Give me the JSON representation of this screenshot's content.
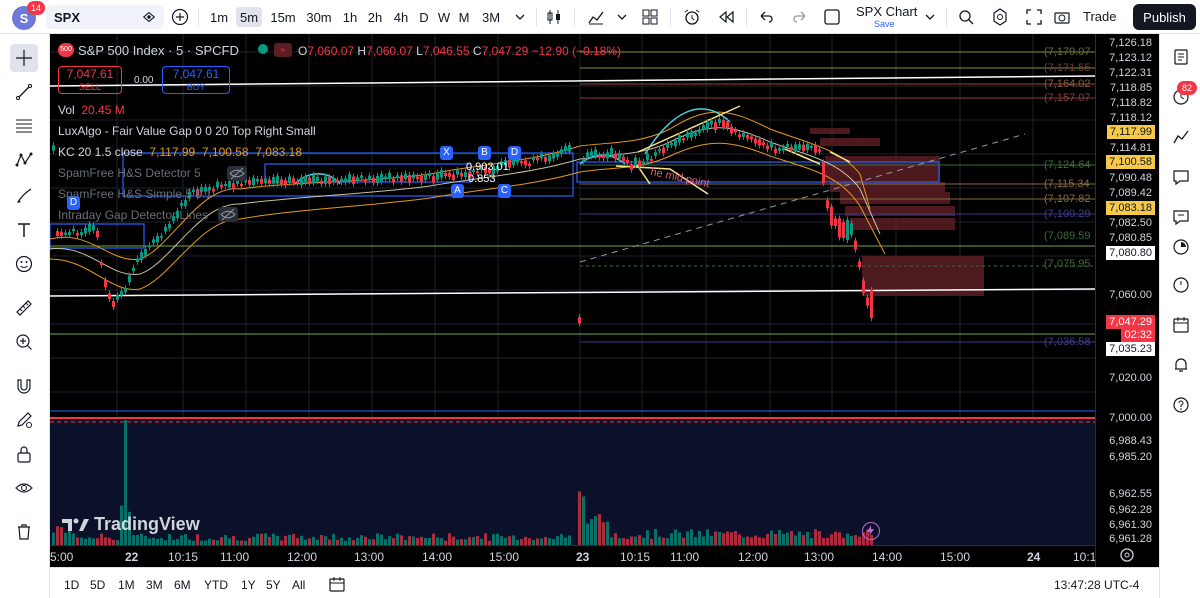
{
  "topbar": {
    "avatar_letter": "S",
    "notification_count": "14",
    "symbol": "SPX",
    "intervals": [
      "1m",
      "5m",
      "15m",
      "30m",
      "1h",
      "2h",
      "4h",
      "D",
      "W",
      "M",
      "3M"
    ],
    "active_interval": "5m",
    "layout_name": "SPX Chart",
    "layout_save": "Save",
    "trade_label": "Trade",
    "publish_label": "Publish"
  },
  "legend": {
    "symbol_title": "S&P 500 Index · 5 · SPCFD",
    "symbol_badge": "500",
    "o_label": "O",
    "o_value": "7,060.07",
    "h_label": "H",
    "h_value": "7,060.07",
    "l_label": "L",
    "l_value": "7,046.55",
    "c_label": "C",
    "c_value": "7,047.29",
    "change": "−12.90 (−0.18%)",
    "sell_price": "7,047.61",
    "sell_label": "SELL",
    "spread": "0.00",
    "buy_price": "7,047.61",
    "buy_label": "BUY",
    "vol_label": "Vol",
    "vol_value": "20.45 M",
    "ind1": "LuxAlgo - Fair Value Gap 0 0 20 Top Right Small",
    "ind2_name": "KC 20 1.5 close",
    "ind2_v1": "7,117.99",
    "ind2_v2": "7,100.58",
    "ind2_v3": "7,083.18",
    "ind3": "SpamFree H&S Detector 5",
    "ind4": "SpamFree H&S Simple 5 0.1",
    "ind5": "Intraday Gap Detector Lines"
  },
  "price_axis": {
    "labels": [
      "7,126.18",
      "7,123.12",
      "7,122.31",
      "7,118.85",
      "7,118.82",
      "7,118.12",
      "7,117.99",
      "7,114.81",
      "7,100.58",
      "7,090.48",
      "7,089.42",
      "7,083.18",
      "7,082.50",
      "7,080.85",
      "7,080.80",
      "7,060.00",
      "7,047.29",
      "02:32",
      "7,035.23",
      "7,020.00",
      "7,000.00",
      "6,988.43",
      "6,985.20",
      "6,962.55",
      "6,962.28",
      "6,961.30",
      "6,961.28"
    ]
  },
  "chart_labels": {
    "right_levels": [
      "(7,179.07",
      "(7,171.55",
      "(7,164.02",
      "(7,157.07",
      "(7,124.64",
      "(7,115.34",
      "(7,107.82",
      "(7,100.29",
      "(7,089.59",
      "(7,075.95",
      "(7,036.58"
    ],
    "pattern_x": "X",
    "pattern_b": "B",
    "pattern_d": "D",
    "pattern_a": "A",
    "pattern_c": "C",
    "pattern_d2": "D",
    "ratio1": "0.903.01",
    "ratio2": "0.853",
    "pattern_text": "he mid point"
  },
  "time_axis": {
    "labels": [
      "5:00",
      "22",
      "10:15",
      "11:00",
      "12:00",
      "13:00",
      "14:00",
      "15:00",
      "23",
      "10:15",
      "11:00",
      "12:00",
      "13:00",
      "14:00",
      "15:00",
      "24",
      "10:1"
    ]
  },
  "watermark": "TradingView",
  "bottombar": {
    "ranges": [
      "1D",
      "5D",
      "1M",
      "3M",
      "6M",
      "YTD",
      "1Y",
      "5Y",
      "All"
    ],
    "clock": "13:47:28 UTC-4"
  },
  "colors": {
    "up": "#089981",
    "down": "#f23645",
    "highlight": "#f7c948",
    "fvg_box": "#5b1e24",
    "hs_box": "#2962ff"
  }
}
